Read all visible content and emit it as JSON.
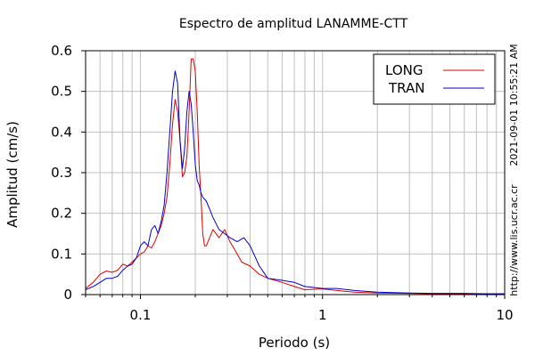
{
  "chart_data": {
    "type": "line",
    "title": "Espectro de amplitud LANAMME-CTT",
    "xlabel": "Periodo (s)",
    "ylabel": "Amplitud (cm/s)",
    "xscale": "log",
    "xlim": [
      0.05,
      10
    ],
    "ylim": [
      0,
      0.6
    ],
    "x_ticks": [
      "0.1",
      "1",
      "10"
    ],
    "y_ticks": [
      "0",
      "0.1",
      "0.2",
      "0.3",
      "0.4",
      "0.5",
      "0.6"
    ],
    "grid": true,
    "legend_position": "top-right",
    "timestamp": "2021-09-01 10:55:21 AM",
    "url": "http://www.lis.ucr.ac.cr",
    "series": [
      {
        "name": "LONG",
        "color": "#dd0000",
        "points": [
          [
            0.05,
            0.015
          ],
          [
            0.055,
            0.03
          ],
          [
            0.06,
            0.05
          ],
          [
            0.065,
            0.058
          ],
          [
            0.07,
            0.055
          ],
          [
            0.075,
            0.06
          ],
          [
            0.08,
            0.075
          ],
          [
            0.085,
            0.07
          ],
          [
            0.09,
            0.08
          ],
          [
            0.095,
            0.09
          ],
          [
            0.1,
            0.1
          ],
          [
            0.105,
            0.105
          ],
          [
            0.11,
            0.12
          ],
          [
            0.115,
            0.115
          ],
          [
            0.12,
            0.13
          ],
          [
            0.125,
            0.15
          ],
          [
            0.13,
            0.17
          ],
          [
            0.135,
            0.2
          ],
          [
            0.14,
            0.24
          ],
          [
            0.145,
            0.32
          ],
          [
            0.15,
            0.42
          ],
          [
            0.155,
            0.48
          ],
          [
            0.16,
            0.45
          ],
          [
            0.165,
            0.38
          ],
          [
            0.17,
            0.29
          ],
          [
            0.175,
            0.3
          ],
          [
            0.18,
            0.34
          ],
          [
            0.185,
            0.45
          ],
          [
            0.19,
            0.58
          ],
          [
            0.195,
            0.58
          ],
          [
            0.2,
            0.55
          ],
          [
            0.205,
            0.45
          ],
          [
            0.21,
            0.32
          ],
          [
            0.215,
            0.24
          ],
          [
            0.22,
            0.15
          ],
          [
            0.225,
            0.12
          ],
          [
            0.23,
            0.12
          ],
          [
            0.24,
            0.14
          ],
          [
            0.25,
            0.16
          ],
          [
            0.27,
            0.14
          ],
          [
            0.29,
            0.16
          ],
          [
            0.31,
            0.13
          ],
          [
            0.33,
            0.11
          ],
          [
            0.36,
            0.08
          ],
          [
            0.4,
            0.07
          ],
          [
            0.45,
            0.05
          ],
          [
            0.5,
            0.04
          ],
          [
            0.6,
            0.03
          ],
          [
            0.7,
            0.02
          ],
          [
            0.8,
            0.012
          ],
          [
            1,
            0.014
          ],
          [
            1.2,
            0.01
          ],
          [
            1.5,
            0.006
          ],
          [
            2,
            0.004
          ],
          [
            3,
            0.003
          ],
          [
            4,
            0.002
          ],
          [
            6,
            0.002
          ],
          [
            8,
            0.002
          ],
          [
            10,
            0.002
          ]
        ]
      },
      {
        "name": "TRAN",
        "color": "#0000cc",
        "points": [
          [
            0.05,
            0.012
          ],
          [
            0.055,
            0.02
          ],
          [
            0.06,
            0.03
          ],
          [
            0.065,
            0.04
          ],
          [
            0.07,
            0.04
          ],
          [
            0.075,
            0.045
          ],
          [
            0.08,
            0.06
          ],
          [
            0.085,
            0.07
          ],
          [
            0.09,
            0.075
          ],
          [
            0.095,
            0.09
          ],
          [
            0.1,
            0.12
          ],
          [
            0.105,
            0.13
          ],
          [
            0.11,
            0.12
          ],
          [
            0.115,
            0.16
          ],
          [
            0.12,
            0.17
          ],
          [
            0.125,
            0.15
          ],
          [
            0.13,
            0.18
          ],
          [
            0.135,
            0.22
          ],
          [
            0.14,
            0.3
          ],
          [
            0.145,
            0.4
          ],
          [
            0.15,
            0.5
          ],
          [
            0.155,
            0.55
          ],
          [
            0.16,
            0.52
          ],
          [
            0.165,
            0.38
          ],
          [
            0.17,
            0.31
          ],
          [
            0.175,
            0.36
          ],
          [
            0.18,
            0.45
          ],
          [
            0.185,
            0.5
          ],
          [
            0.19,
            0.47
          ],
          [
            0.195,
            0.4
          ],
          [
            0.2,
            0.32
          ],
          [
            0.205,
            0.28
          ],
          [
            0.21,
            0.27
          ],
          [
            0.215,
            0.25
          ],
          [
            0.22,
            0.24
          ],
          [
            0.23,
            0.23
          ],
          [
            0.24,
            0.21
          ],
          [
            0.25,
            0.19
          ],
          [
            0.27,
            0.16
          ],
          [
            0.29,
            0.15
          ],
          [
            0.31,
            0.14
          ],
          [
            0.34,
            0.13
          ],
          [
            0.37,
            0.14
          ],
          [
            0.4,
            0.12
          ],
          [
            0.45,
            0.07
          ],
          [
            0.5,
            0.04
          ],
          [
            0.6,
            0.035
          ],
          [
            0.7,
            0.03
          ],
          [
            0.8,
            0.02
          ],
          [
            1,
            0.015
          ],
          [
            1.2,
            0.015
          ],
          [
            1.5,
            0.01
          ],
          [
            2,
            0.006
          ],
          [
            3,
            0.004
          ],
          [
            4,
            0.003
          ],
          [
            6,
            0.003
          ],
          [
            8,
            0.002
          ],
          [
            10,
            0.002
          ]
        ]
      }
    ]
  }
}
